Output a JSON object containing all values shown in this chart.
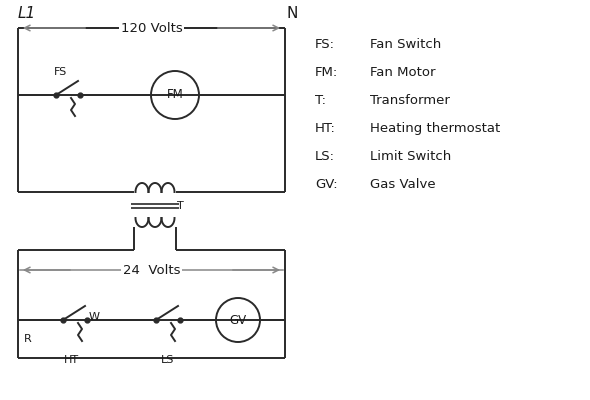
{
  "bg_color": "#ffffff",
  "line_color": "#2a2a2a",
  "arrow_color": "#888888",
  "text_color": "#1a1a1a",
  "legend_items": [
    [
      "FS:",
      "Fan Switch"
    ],
    [
      "FM:",
      "Fan Motor"
    ],
    [
      "T:",
      "Transformer"
    ],
    [
      "HT:",
      "Heating thermostat"
    ],
    [
      "LS:",
      "Limit Switch"
    ],
    [
      "GV:",
      "Gas Valve"
    ]
  ],
  "L1_label": "L1",
  "N_label": "N",
  "volts120_label": "120 Volts",
  "volts24_label": "24  Volts",
  "T_label": "T",
  "FS_label": "FS",
  "FM_label": "FM",
  "R_label": "R",
  "W_label": "W",
  "HT_label": "HT",
  "LS_label": "LS",
  "GV_label": "GV",
  "fig_w": 5.9,
  "fig_h": 4.0,
  "dpi": 100
}
